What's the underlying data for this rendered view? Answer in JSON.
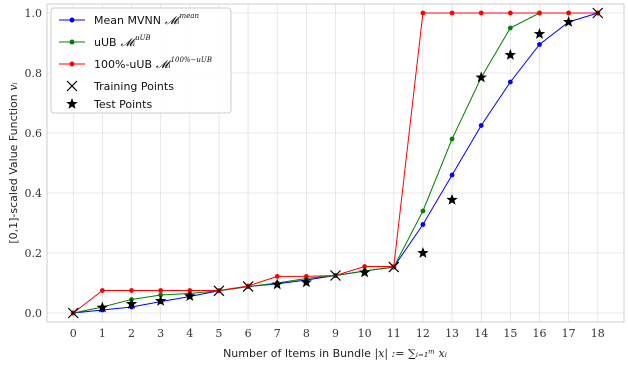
{
  "chart_data": {
    "type": "line",
    "xlabel_text": "Number of Items in Bundle ",
    "xlabel_math": "|x| := ∑ᵢ₌₁ᵐ xᵢ",
    "ylabel_text": "[0,1]-scaled Value Function ",
    "ylabel_math": "vᵢ",
    "xlim": [
      -0.9,
      18.9
    ],
    "ylim": [
      -0.03,
      1.03
    ],
    "x_ticks": [
      0,
      1,
      2,
      3,
      4,
      5,
      6,
      7,
      8,
      9,
      10,
      11,
      12,
      13,
      14,
      15,
      16,
      17,
      18
    ],
    "y_ticks": [
      0.0,
      0.2,
      0.4,
      0.6,
      0.8,
      1.0
    ],
    "y_tick_labels": [
      "0.0",
      "0.2",
      "0.4",
      "0.6",
      "0.8",
      "1.0"
    ],
    "grid": true,
    "legend_position": "top-left",
    "series": [
      {
        "name": "Mean MVNN",
        "name_math": "𝓜ᵢ",
        "name_sup": "mean",
        "color": "#0000ff",
        "x": [
          0,
          1,
          2,
          3,
          4,
          5,
          6,
          7,
          8,
          9,
          10,
          11,
          12,
          13,
          14,
          15,
          16,
          17,
          18
        ],
        "values": [
          0.0,
          0.01,
          0.02,
          0.038,
          0.055,
          0.074,
          0.088,
          0.097,
          0.11,
          0.125,
          0.14,
          0.153,
          0.295,
          0.46,
          0.625,
          0.77,
          0.895,
          0.97,
          1.0
        ]
      },
      {
        "name": "uUB",
        "name_math": "𝓜ᵢ",
        "name_sup": "uUB",
        "color": "#008000",
        "x": [
          0,
          1,
          2,
          3,
          4,
          5,
          6,
          7,
          8,
          9,
          10,
          11,
          12,
          13,
          14,
          15,
          16,
          17,
          18
        ],
        "values": [
          0.0,
          0.02,
          0.045,
          0.06,
          0.065,
          0.074,
          0.088,
          0.1,
          0.115,
          0.125,
          0.14,
          0.153,
          0.34,
          0.58,
          0.785,
          0.95,
          1.0,
          1.0,
          1.0
        ]
      },
      {
        "name": "100%-uUB",
        "name_math": "𝓜ᵢ",
        "name_sup": "100%−uUB",
        "color": "#ff0000",
        "x": [
          0,
          1,
          2,
          3,
          4,
          5,
          6,
          7,
          8,
          9,
          10,
          11,
          12,
          13,
          14,
          15,
          16,
          17,
          18
        ],
        "values": [
          0.0,
          0.075,
          0.075,
          0.075,
          0.075,
          0.075,
          0.09,
          0.122,
          0.122,
          0.125,
          0.155,
          0.155,
          1.0,
          1.0,
          1.0,
          1.0,
          1.0,
          1.0,
          1.0
        ]
      }
    ],
    "training_points": {
      "name": "Training Points",
      "x": [
        0,
        5,
        6,
        9,
        11,
        18
      ],
      "values": [
        0.0,
        0.074,
        0.088,
        0.125,
        0.153,
        1.0
      ]
    },
    "test_points": {
      "name": "Test Points",
      "x": [
        1,
        2,
        3,
        4,
        7,
        8,
        10,
        12,
        13,
        14,
        15,
        16,
        17
      ],
      "values": [
        0.018,
        0.03,
        0.04,
        0.056,
        0.095,
        0.102,
        0.135,
        0.2,
        0.377,
        0.785,
        0.86,
        0.93,
        0.97
      ]
    }
  }
}
